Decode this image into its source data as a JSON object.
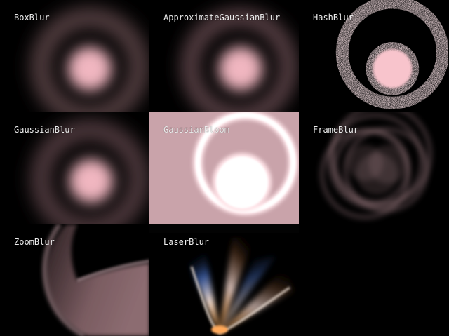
{
  "tiles": [
    {
      "label": "BoxBlur"
    },
    {
      "label": "ApproximateGaussianBlur"
    },
    {
      "label": "HashBlur"
    },
    {
      "label": "GaussianBlur"
    },
    {
      "label": "GaussianBloom"
    },
    {
      "label": "FrameBlur"
    },
    {
      "label": "ZoomBlur"
    },
    {
      "label": "LaserBlur"
    }
  ],
  "colors": {
    "background": "#000000",
    "blob_pink": "#f6bcc6",
    "bloom_background": "#c9a3aa",
    "bloom_ring": "#ffffff",
    "label_text": "#ededed"
  }
}
